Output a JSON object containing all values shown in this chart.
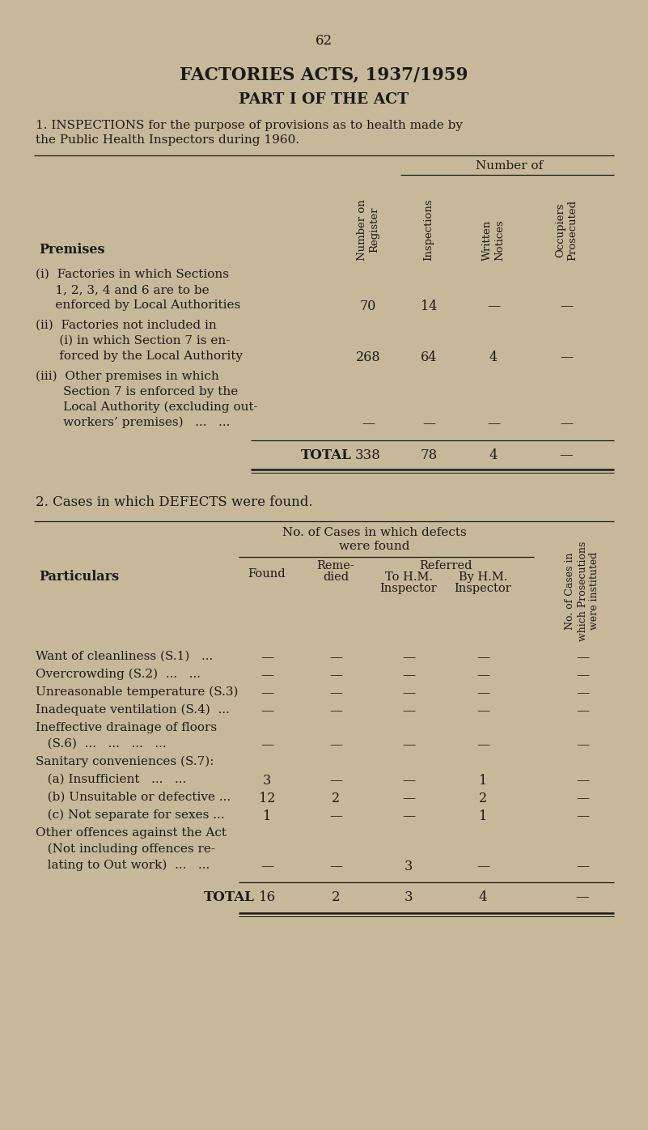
{
  "page_number": "62",
  "title1": "FACTORIES ACTS, 1937/1959",
  "title2": "PART I OF THE ACT",
  "bg_color": "#c8b89a",
  "text_color": "#1a1a1a",
  "table1": {
    "col_headers_group": "Number of",
    "col_headers": [
      "Number on\nRegister",
      "Inspections",
      "Written\nNotices",
      "Occupiers\nProsecuted"
    ],
    "row_label_header": "Premises",
    "rows": [
      {
        "lines": [
          "(i)  Factories in which Sections",
          "     1, 2, 3, 4 and 6 are to be",
          "     enforced by Local Authorities"
        ],
        "val_line": 2,
        "values": [
          "70",
          "14",
          "—",
          "—"
        ]
      },
      {
        "lines": [
          "(ii)  Factories not included in",
          "      (i) in which Section 7 is en-",
          "      forced by the Local Authority"
        ],
        "val_line": 2,
        "values": [
          "268",
          "64",
          "4",
          "—"
        ]
      },
      {
        "lines": [
          "(iii)  Other premises in which",
          "       Section 7 is enforced by the",
          "       Local Authority (excluding out-",
          "       workers’ premises)   ...   ..."
        ],
        "val_line": 3,
        "values": [
          "—",
          "—",
          "—",
          "—"
        ]
      }
    ],
    "total_label": "TOTAL",
    "total_values": [
      "338",
      "78",
      "4",
      "—"
    ]
  },
  "section2_title": "2. Cases in which DEFECTS were found.",
  "table2": {
    "rows": [
      {
        "lines": [
          "Want of cleanliness (S.1)   ..."
        ],
        "val_line": 0,
        "values": [
          "—",
          "—",
          "—",
          "—",
          "—"
        ]
      },
      {
        "lines": [
          "Overcrowding (S.2)  ...   ..."
        ],
        "val_line": 0,
        "values": [
          "—",
          "—",
          "—",
          "—",
          "—"
        ]
      },
      {
        "lines": [
          "Unreasonable temperature (S.3)"
        ],
        "val_line": 0,
        "values": [
          "—",
          "—",
          "—",
          "—",
          "—"
        ]
      },
      {
        "lines": [
          "Inadequate ventilation (S.4)  ..."
        ],
        "val_line": 0,
        "values": [
          "—",
          "—",
          "—",
          "—",
          "—"
        ]
      },
      {
        "lines": [
          "Ineffective drainage of floors",
          "   (S.6)  ...   ...   ...   ..."
        ],
        "val_line": 1,
        "values": [
          "—",
          "—",
          "—",
          "—",
          "—"
        ]
      },
      {
        "lines": [
          "Sanitary conveniences (S.7):"
        ],
        "val_line": -1,
        "values": []
      },
      {
        "lines": [
          "   (a) Insufficient   ...   ..."
        ],
        "val_line": 0,
        "values": [
          "3",
          "—",
          "—",
          "1",
          "—"
        ]
      },
      {
        "lines": [
          "   (b) Unsuitable or defective ..."
        ],
        "val_line": 0,
        "values": [
          "12",
          "2",
          "—",
          "2",
          "—"
        ]
      },
      {
        "lines": [
          "   (c) Not separate for sexes ..."
        ],
        "val_line": 0,
        "values": [
          "1",
          "—",
          "—",
          "1",
          "—"
        ]
      },
      {
        "lines": [
          "Other offences against the Act",
          "   (Not including offences re-",
          "   lating to Out work)  ...   ..."
        ],
        "val_line": 2,
        "values": [
          "—",
          "—",
          "3",
          "—",
          "—"
        ]
      }
    ],
    "total_label": "TOTAL",
    "total_values": [
      "16",
      "2",
      "3",
      "4",
      "—"
    ]
  }
}
